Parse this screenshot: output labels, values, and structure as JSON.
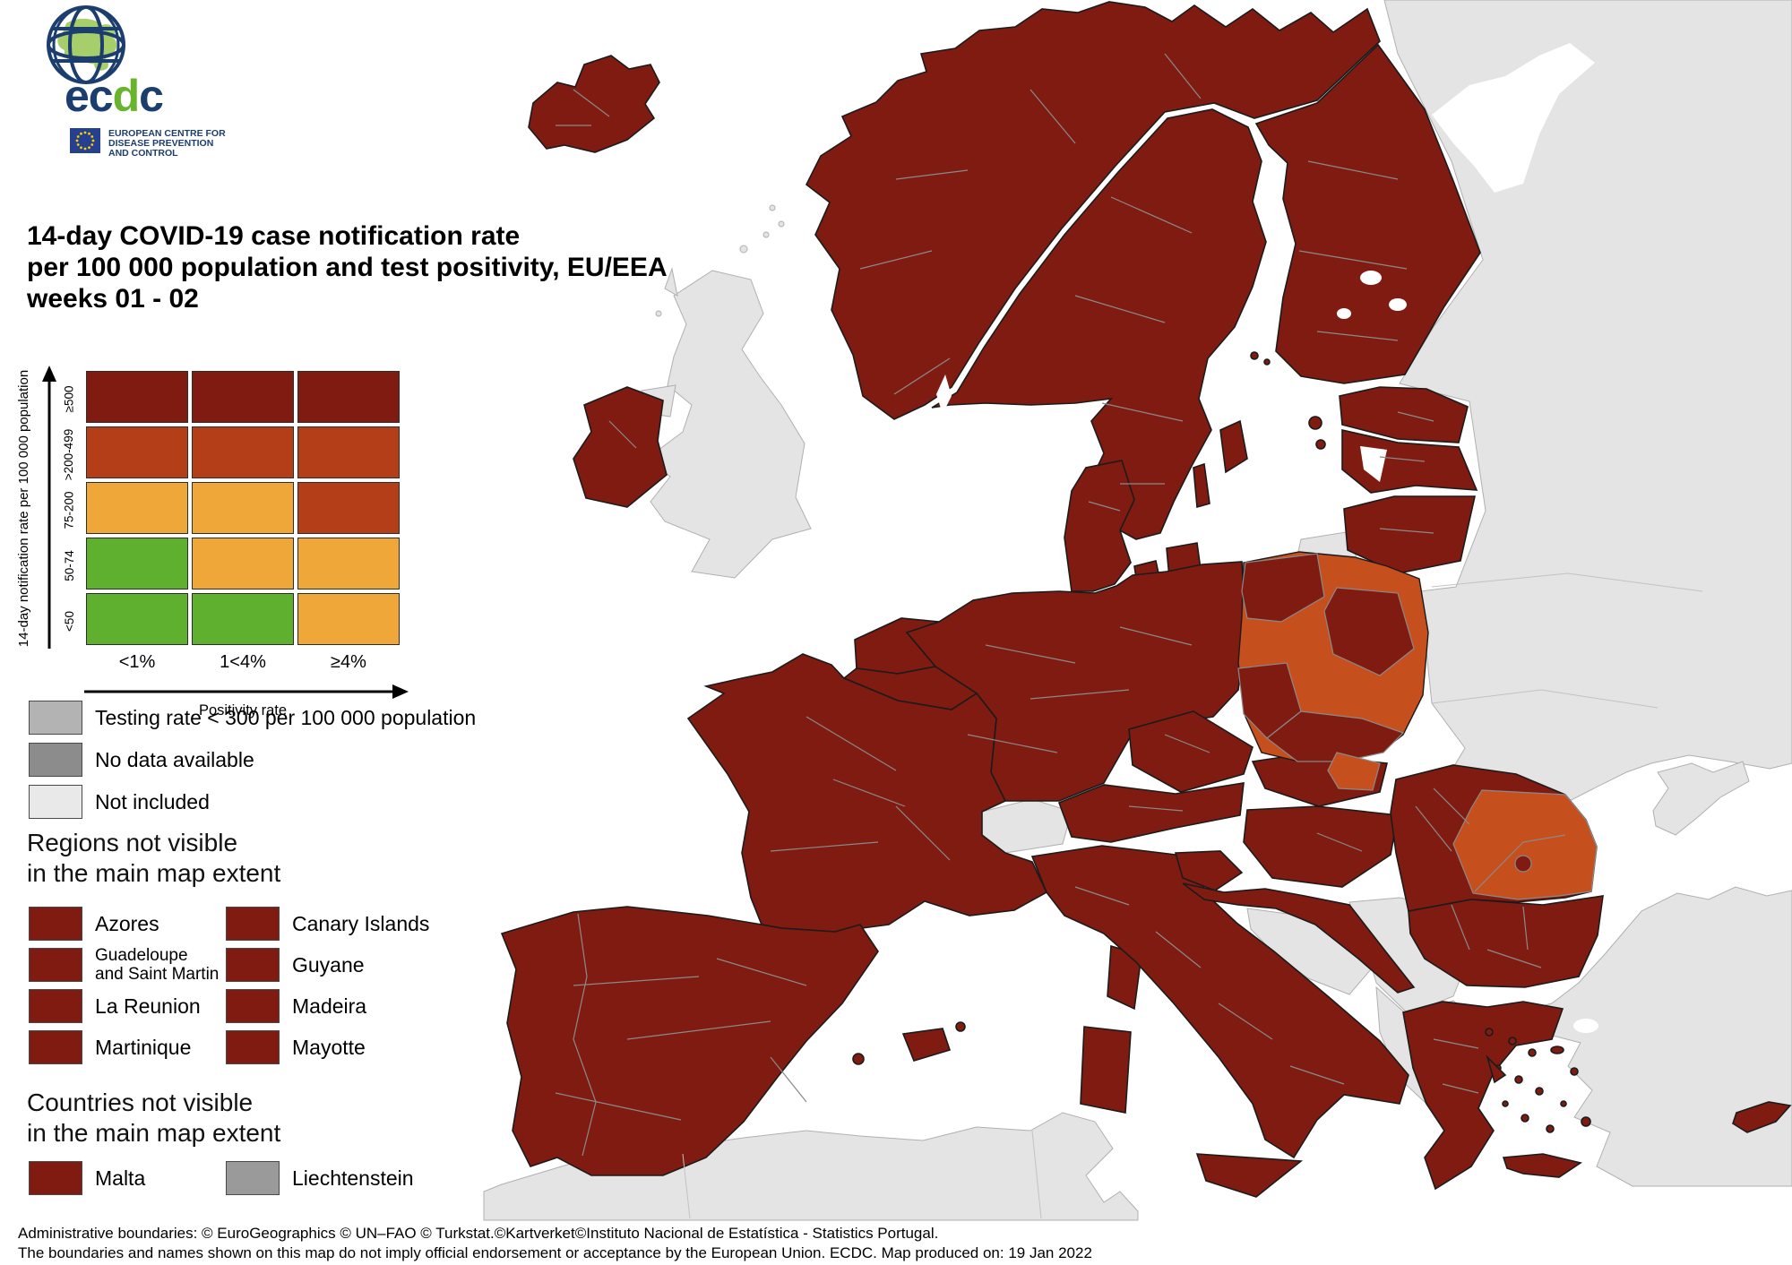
{
  "logo": {
    "wordmark_parts": [
      {
        "text": "ec",
        "color_key": "logo_navy"
      },
      {
        "text": "d",
        "color_key": "logo_green"
      },
      {
        "text": "c",
        "color_key": "logo_navy"
      }
    ],
    "org_name_lines": [
      "EUROPEAN CENTRE FOR",
      "DISEASE PREVENTION",
      "AND CONTROL"
    ]
  },
  "title": {
    "lines": [
      "14-day COVID-19 case notification rate",
      "per 100 000 population and test positivity, EU/EEA",
      "weeks 01 - 02"
    ]
  },
  "legend_matrix": {
    "y_axis_label": "14-day notification rate per 100 000 population",
    "x_axis_label": "Positivity rate",
    "row_labels": [
      "≥500",
      ">200-499",
      "75-200",
      "50-74",
      "<50"
    ],
    "col_labels": [
      "<1%",
      "1<4%",
      "≥4%"
    ],
    "cells": [
      [
        "dark_red",
        "dark_red",
        "dark_red"
      ],
      [
        "medium_red",
        "medium_red",
        "medium_red"
      ],
      [
        "orange",
        "orange",
        "medium_red"
      ],
      [
        "green",
        "orange",
        "orange"
      ],
      [
        "green",
        "green",
        "orange"
      ]
    ]
  },
  "legend_items": [
    {
      "label": "Testing rate < 300 per 100 000 population",
      "color_key": "testing_gray"
    },
    {
      "label": "No data available",
      "color_key": "no_data_gray"
    },
    {
      "label": "Not included",
      "color_key": "not_included_gray"
    }
  ],
  "regions_section": {
    "heading_lines": [
      "Regions not visible",
      "in the main map extent"
    ],
    "items": [
      {
        "label": "Azores",
        "color_key": "dark_red"
      },
      {
        "label": "Canary Islands",
        "color_key": "dark_red"
      },
      {
        "label": "Guadeloupe",
        "label_line2": "and Saint Martin",
        "color_key": "dark_red"
      },
      {
        "label": "Guyane",
        "color_key": "dark_red"
      },
      {
        "label": "La Reunion",
        "color_key": "dark_red"
      },
      {
        "label": "Madeira",
        "color_key": "dark_red"
      },
      {
        "label": "Martinique",
        "color_key": "dark_red"
      },
      {
        "label": "Mayotte",
        "color_key": "dark_red"
      }
    ]
  },
  "countries_section": {
    "heading_lines": [
      "Countries not visible",
      "in the main map extent"
    ],
    "items": [
      {
        "label": "Malta",
        "color_key": "dark_red"
      },
      {
        "label": "Liechtenstein",
        "color_key": "liechtenstein_gray"
      }
    ]
  },
  "footer": {
    "line1": "Administrative boundaries: © EuroGeographics © UN–FAO © Turkstat.©Kartverket©Instituto Nacional de Estatística - Statistics Portugal.",
    "line2": "The boundaries and names shown on this map do not imply official endorsement or acceptance by the European Union. ECDC. Map produced on: 19 Jan 2022"
  },
  "colors": {
    "dark_red": "#801b12",
    "medium_red": "#b43e18",
    "orange": "#f0a73a",
    "green": "#5fb02e",
    "map_orange": "#c64f1e",
    "map_gray": "#e4e4e4",
    "sea_white": "#ffffff",
    "testing_gray": "#b3b3b3",
    "no_data_gray": "#8c8c8c",
    "not_included_gray": "#e9e9e9",
    "liechtenstein_gray": "#9a9a9a",
    "logo_navy": "#1c3e6e",
    "logo_green": "#69b42e",
    "border_black": "#1b1b1b",
    "region_line_gray": "#8a8a8a",
    "non_eu_border": "#b0b0b0"
  }
}
